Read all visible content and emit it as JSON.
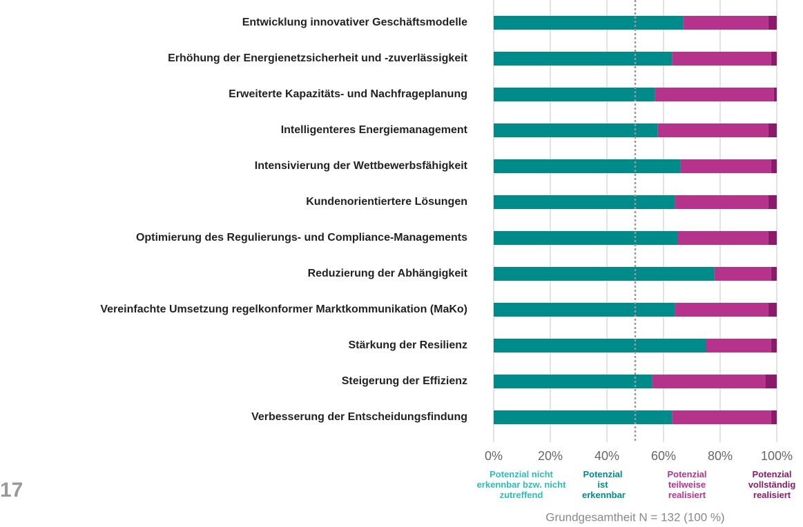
{
  "chart_data": {
    "type": "stacked-bar-horizontal",
    "categories": [
      "Entwicklung innovativer Geschäftsmodelle",
      "Erhöhung der Energienetzsicherheit und -zuverlässigkeit",
      "Erweiterte Kapazitäts- und Nachfrageplanung",
      "Intelligenteres Energiemanagement",
      "Intensivierung der Wettbewerbsfähigkeit",
      "Kundenorientiertere Lösungen",
      "Optimierung des Regulierungs- und Compliance-Managements",
      "Reduzierung der Abhängigkeit",
      "Vereinfachte Umsetzung regelkonformer Marktkommunikation (MaKo)",
      "Stärkung der Resilienz",
      "Steigerung der Effizienz",
      "Verbesserung der Entscheidungsfindung"
    ],
    "series": [
      {
        "name": "Potenzial nicht erkennbar bzw. nicht zutreffend",
        "color": "#2bbdb8",
        "values": [
          0,
          0,
          0,
          0,
          0,
          0,
          0,
          0,
          0,
          0,
          0,
          0
        ]
      },
      {
        "name": "Potenzial ist erkennbar",
        "color": "#008b8b",
        "values": [
          67,
          63,
          57,
          58,
          66,
          64,
          65,
          78,
          64,
          75,
          56,
          63
        ]
      },
      {
        "name": "Potenzial teilweise realisiert",
        "color": "#b5338a",
        "values": [
          30,
          35,
          42,
          39,
          32,
          33,
          32,
          20,
          33,
          23,
          40,
          35
        ]
      },
      {
        "name": "Potenzial vollständig realisiert",
        "color": "#8b1a6b",
        "values": [
          3,
          2,
          1,
          3,
          2,
          3,
          3,
          2,
          3,
          2,
          4,
          2
        ]
      }
    ],
    "xlim": [
      0,
      100
    ],
    "xticks": [
      {
        "value": 0,
        "label": "0%"
      },
      {
        "value": 20,
        "label": "20%"
      },
      {
        "value": 40,
        "label": "40%"
      },
      {
        "value": 60,
        "label": "60%"
      },
      {
        "value": 80,
        "label": "80%"
      },
      {
        "value": 100,
        "label": "100%"
      }
    ],
    "grid": true,
    "reference_line": 50,
    "note": "Grundgesamtheit N = 132 (100 %)",
    "page_number": "17"
  }
}
